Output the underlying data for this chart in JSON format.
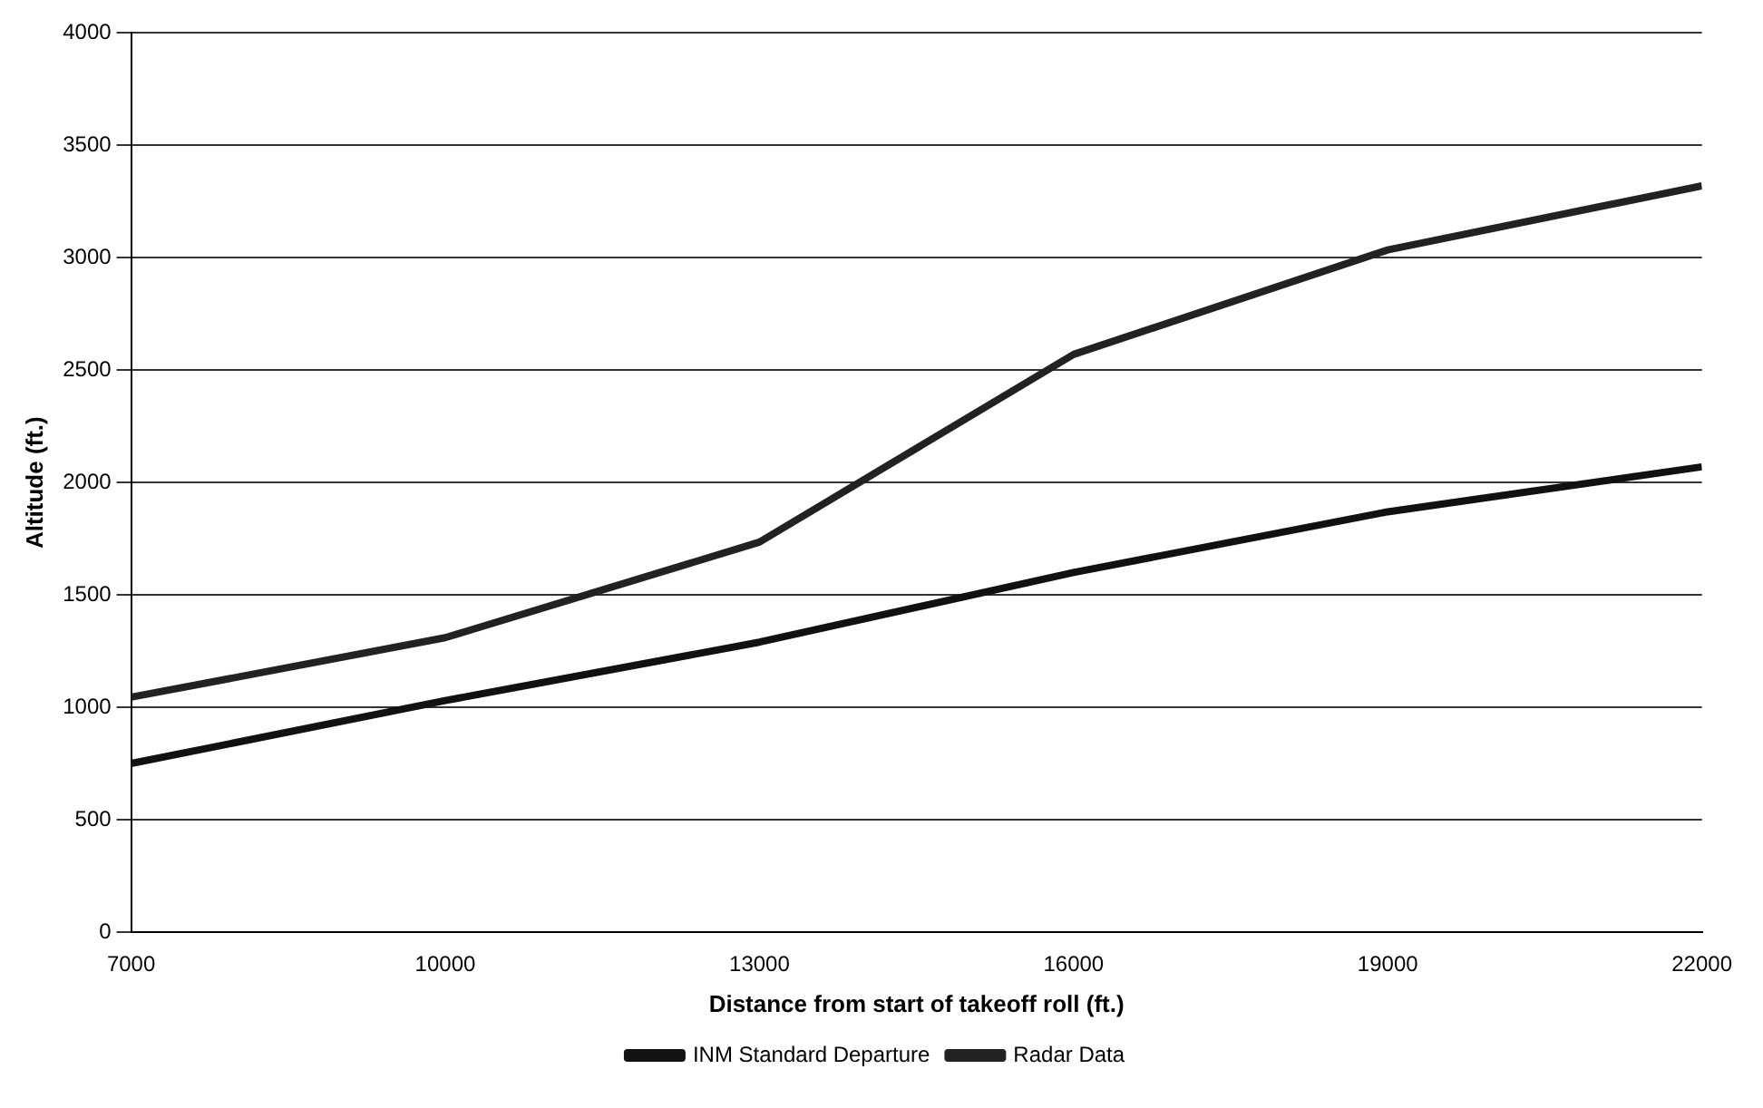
{
  "chart_data": {
    "type": "line",
    "xlabel": "Distance from start of takeoff roll (ft.)",
    "ylabel": "Altitude (ft.)",
    "xlim": [
      7000,
      22000
    ],
    "xticks": [
      7000,
      10000,
      13000,
      16000,
      19000,
      22000
    ],
    "ylim": [
      0,
      4000
    ],
    "yticks": [
      0,
      500,
      1000,
      1500,
      2000,
      2500,
      3000,
      3500,
      4000
    ],
    "grid": "y",
    "legend": "bottom",
    "marker": "none",
    "line_style": "solid",
    "series": [
      {
        "name": "INM Standard Departure",
        "color": "#111111",
        "x": [
          7000,
          10000,
          13000,
          16000,
          19000,
          22000
        ],
        "values": [
          750,
          1030,
          1290,
          1600,
          1870,
          2070
        ]
      },
      {
        "name": "Radar Data",
        "color": "#222222",
        "x": [
          7000,
          10000,
          13000,
          16000,
          19000,
          22000
        ],
        "values": [
          1045,
          1310,
          1735,
          2570,
          3035,
          3320
        ]
      }
    ]
  }
}
